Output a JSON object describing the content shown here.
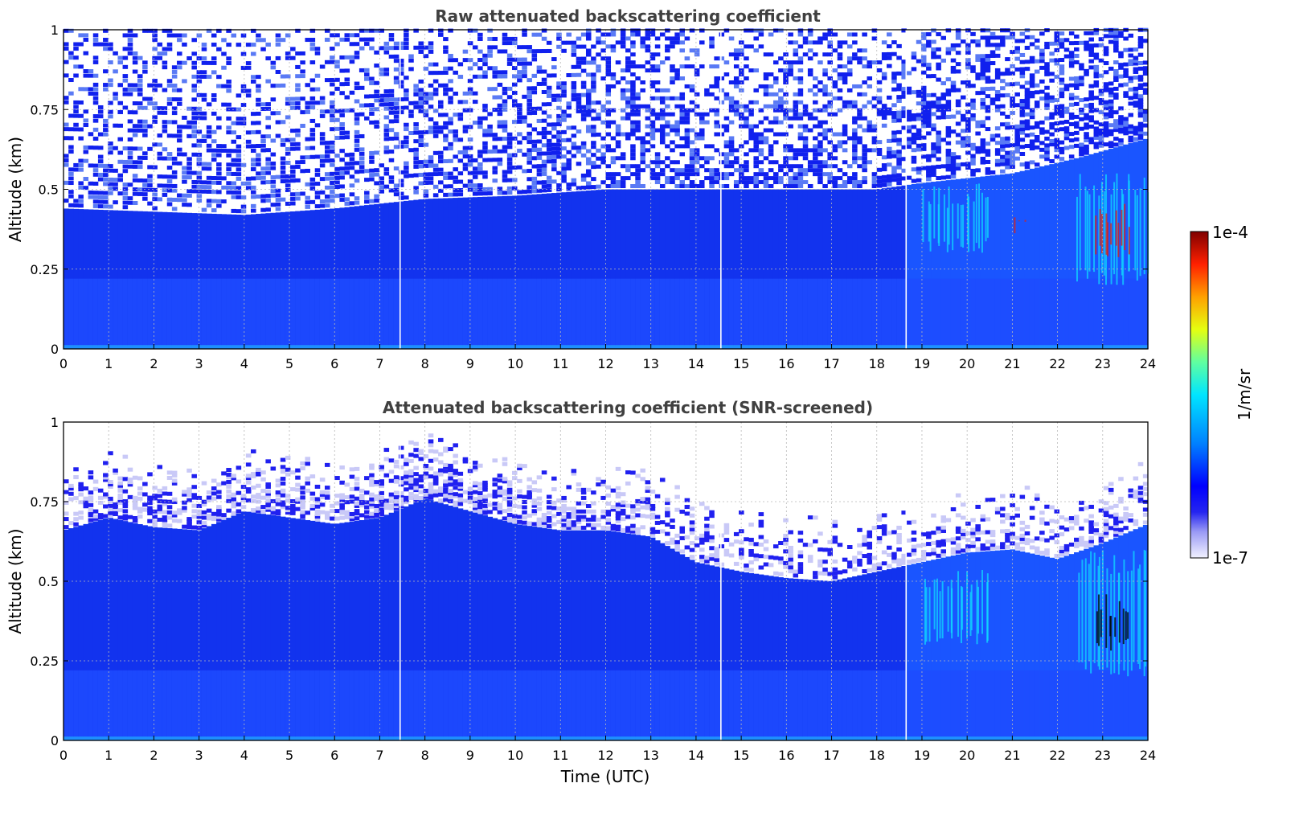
{
  "chart_data": [
    {
      "type": "heatmap",
      "title": "Raw attenuated backscattering coefficient",
      "xlabel": "",
      "ylabel": "Altitude (km)",
      "xlim": [
        0,
        24
      ],
      "ylim": [
        0,
        1
      ],
      "x_ticks": [
        "0",
        "1",
        "2",
        "3",
        "4",
        "5",
        "6",
        "7",
        "8",
        "9",
        "10",
        "11",
        "12",
        "13",
        "14",
        "15",
        "16",
        "17",
        "18",
        "19",
        "20",
        "21",
        "22",
        "23",
        "24"
      ],
      "y_ticks": [
        "0",
        "0.25",
        "0.5",
        "0.75",
        "1"
      ],
      "grid": true,
      "screened": false,
      "boundary_layer_top_km": [
        {
          "t": 0,
          "z": 0.44
        },
        {
          "t": 2,
          "z": 0.43
        },
        {
          "t": 4,
          "z": 0.42
        },
        {
          "t": 6,
          "z": 0.44
        },
        {
          "t": 8,
          "z": 0.47
        },
        {
          "t": 10,
          "z": 0.48
        },
        {
          "t": 12,
          "z": 0.5
        },
        {
          "t": 14,
          "z": 0.5
        },
        {
          "t": 16,
          "z": 0.5
        },
        {
          "t": 18,
          "z": 0.5
        },
        {
          "t": 19,
          "z": 0.52
        },
        {
          "t": 21,
          "z": 0.55
        },
        {
          "t": 22.5,
          "z": 0.6
        },
        {
          "t": 24,
          "z": 0.66
        }
      ],
      "features": [
        {
          "label": "aerosol layer",
          "t_start": 19,
          "t_end": 20.5,
          "z_low": 0.3,
          "z_high": 0.52,
          "level": "cyan"
        },
        {
          "label": "aerosol layer",
          "t_start": 22.4,
          "t_end": 24,
          "z_low": 0.2,
          "z_high": 0.55,
          "level": "cyan"
        },
        {
          "label": "strong echo",
          "t_start": 22.8,
          "t_end": 23.6,
          "z_low": 0.28,
          "z_high": 0.46,
          "level": "red"
        },
        {
          "label": "strong echo",
          "t_start": 21.0,
          "t_end": 21.3,
          "z_low": 0.36,
          "z_high": 0.45,
          "level": "red"
        }
      ],
      "gaps_utc": [
        7.45,
        14.55,
        18.65
      ]
    },
    {
      "type": "heatmap",
      "title": "Attenuated backscattering coefficient (SNR-screened)",
      "xlabel": "Time (UTC)",
      "ylabel": "Altitude (km)",
      "xlim": [
        0,
        24
      ],
      "ylim": [
        0,
        1
      ],
      "x_ticks": [
        "0",
        "1",
        "2",
        "3",
        "4",
        "5",
        "6",
        "7",
        "8",
        "9",
        "10",
        "11",
        "12",
        "13",
        "14",
        "15",
        "16",
        "17",
        "18",
        "19",
        "20",
        "21",
        "22",
        "23",
        "24"
      ],
      "y_ticks": [
        "0",
        "0.25",
        "0.5",
        "0.75",
        "1"
      ],
      "grid": true,
      "screened": true,
      "boundary_layer_top_km": [
        {
          "t": 0,
          "z": 0.66
        },
        {
          "t": 1,
          "z": 0.7
        },
        {
          "t": 2,
          "z": 0.67
        },
        {
          "t": 3,
          "z": 0.66
        },
        {
          "t": 4,
          "z": 0.72
        },
        {
          "t": 5,
          "z": 0.7
        },
        {
          "t": 6,
          "z": 0.68
        },
        {
          "t": 7,
          "z": 0.7
        },
        {
          "t": 8,
          "z": 0.76
        },
        {
          "t": 9,
          "z": 0.72
        },
        {
          "t": 10,
          "z": 0.68
        },
        {
          "t": 11,
          "z": 0.66
        },
        {
          "t": 12,
          "z": 0.66
        },
        {
          "t": 13,
          "z": 0.64
        },
        {
          "t": 14,
          "z": 0.56
        },
        {
          "t": 15,
          "z": 0.53
        },
        {
          "t": 16,
          "z": 0.51
        },
        {
          "t": 17,
          "z": 0.5
        },
        {
          "t": 18,
          "z": 0.53
        },
        {
          "t": 19,
          "z": 0.56
        },
        {
          "t": 20,
          "z": 0.59
        },
        {
          "t": 21,
          "z": 0.6
        },
        {
          "t": 22,
          "z": 0.57
        },
        {
          "t": 23,
          "z": 0.62
        },
        {
          "t": 24,
          "z": 0.68
        }
      ],
      "features": [
        {
          "label": "aerosol layer",
          "t_start": 19,
          "t_end": 20.5,
          "z_low": 0.3,
          "z_high": 0.54,
          "level": "cyan"
        },
        {
          "label": "aerosol layer",
          "t_start": 22.4,
          "t_end": 24,
          "z_low": 0.2,
          "z_high": 0.6,
          "level": "cyan"
        },
        {
          "label": "saturated echo",
          "t_start": 22.8,
          "t_end": 23.6,
          "z_low": 0.28,
          "z_high": 0.46,
          "level": "black"
        }
      ],
      "gaps_utc": [
        7.45,
        14.55,
        18.65
      ]
    }
  ],
  "colorbar": {
    "label": "1/m/sr",
    "min_label": "1e-7",
    "max_label": "1e-4",
    "colormap": "jet",
    "scale": "log"
  }
}
